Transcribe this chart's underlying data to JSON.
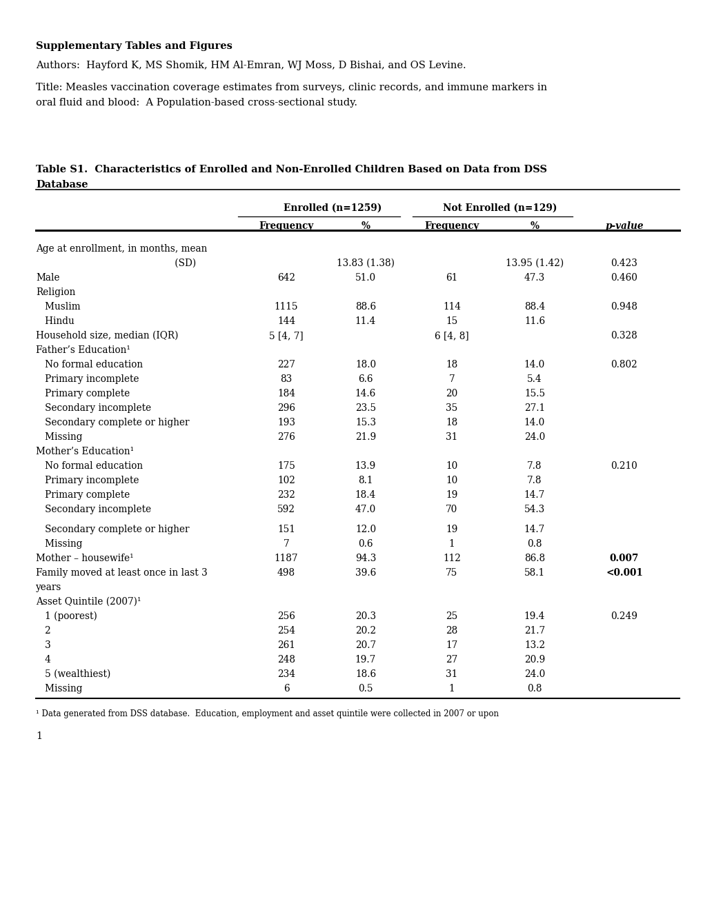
{
  "title_bold": "Supplementary Tables and Figures",
  "authors": "Authors:  Hayford K, MS Shomik, HM Al-Emran, WJ Moss, D Bishai, and OS Levine.",
  "paper_title_line1": "Title: Measles vaccination coverage estimates from surveys, clinic records, and immune markers in",
  "paper_title_line2": "oral fluid and blood:  A Population-based cross-sectional study.",
  "table_title_line1": "Table S1.  Characteristics of Enrolled and Non-Enrolled Children Based on Data from DSS",
  "table_title_line2": "Database",
  "footnote": "¹ Data generated from DSS database.  Education, employment and asset quintile were collected in 2007 or upon",
  "page_number": "1",
  "enrolled_header": "Enrolled (n=1259)",
  "notenrolled_header": "Not Enrolled (n=129)",
  "subheaders": [
    "Frequency",
    "%",
    "Frequency",
    "%",
    "p-value"
  ],
  "rows": [
    {
      "label": "Age at enrollment, in months, mean",
      "indent": 2,
      "freq1": "",
      "pct1": "",
      "freq2": "",
      "pct2": "",
      "pval": "",
      "bold_pval": false,
      "extra_before": 0
    },
    {
      "label": "                                              (SD)",
      "indent": 0,
      "freq1": "",
      "pct1": "13.83 (1.38)",
      "freq2": "",
      "pct2": "13.95 (1.42)",
      "pval": "0.423",
      "bold_pval": false,
      "extra_before": 0
    },
    {
      "label": "Male",
      "indent": 0,
      "freq1": "642",
      "pct1": "51.0",
      "freq2": "61",
      "pct2": "47.3",
      "pval": "0.460",
      "bold_pval": false,
      "extra_before": 0
    },
    {
      "label": "Religion",
      "indent": 0,
      "freq1": "",
      "pct1": "",
      "freq2": "",
      "pct2": "",
      "pval": "",
      "bold_pval": false,
      "extra_before": 0
    },
    {
      "label": "   Muslim",
      "indent": 1,
      "freq1": "1115",
      "pct1": "88.6",
      "freq2": "114",
      "pct2": "88.4",
      "pval": "0.948",
      "bold_pval": false,
      "extra_before": 0
    },
    {
      "label": "   Hindu",
      "indent": 1,
      "freq1": "144",
      "pct1": "11.4",
      "freq2": "15",
      "pct2": "11.6",
      "pval": "",
      "bold_pval": false,
      "extra_before": 0
    },
    {
      "label": "Household size, median (IQR)",
      "indent": 0,
      "freq1": "5 [4, 7]",
      "pct1": "",
      "freq2": "6 [4, 8]",
      "pct2": "",
      "pval": "0.328",
      "bold_pval": false,
      "extra_before": 0
    },
    {
      "label": "Father’s Education¹",
      "indent": 0,
      "freq1": "",
      "pct1": "",
      "freq2": "",
      "pct2": "",
      "pval": "",
      "bold_pval": false,
      "extra_before": 0
    },
    {
      "label": "   No formal education",
      "indent": 1,
      "freq1": "227",
      "pct1": "18.0",
      "freq2": "18",
      "pct2": "14.0",
      "pval": "0.802",
      "bold_pval": false,
      "extra_before": 0
    },
    {
      "label": "   Primary incomplete",
      "indent": 1,
      "freq1": "83",
      "pct1": "6.6",
      "freq2": "7",
      "pct2": "5.4",
      "pval": "",
      "bold_pval": false,
      "extra_before": 0
    },
    {
      "label": "   Primary complete",
      "indent": 1,
      "freq1": "184",
      "pct1": "14.6",
      "freq2": "20",
      "pct2": "15.5",
      "pval": "",
      "bold_pval": false,
      "extra_before": 0
    },
    {
      "label": "   Secondary incomplete",
      "indent": 1,
      "freq1": "296",
      "pct1": "23.5",
      "freq2": "35",
      "pct2": "27.1",
      "pval": "",
      "bold_pval": false,
      "extra_before": 0
    },
    {
      "label": "   Secondary complete or higher",
      "indent": 1,
      "freq1": "193",
      "pct1": "15.3",
      "freq2": "18",
      "pct2": "14.0",
      "pval": "",
      "bold_pval": false,
      "extra_before": 0
    },
    {
      "label": "   Missing",
      "indent": 1,
      "freq1": "276",
      "pct1": "21.9",
      "freq2": "31",
      "pct2": "24.0",
      "pval": "",
      "bold_pval": false,
      "extra_before": 0
    },
    {
      "label": "Mother’s Education¹",
      "indent": 0,
      "freq1": "",
      "pct1": "",
      "freq2": "",
      "pct2": "",
      "pval": "",
      "bold_pval": false,
      "extra_before": 0
    },
    {
      "label": "   No formal education",
      "indent": 1,
      "freq1": "175",
      "pct1": "13.9",
      "freq2": "10",
      "pct2": "7.8",
      "pval": "0.210",
      "bold_pval": false,
      "extra_before": 0
    },
    {
      "label": "   Primary incomplete",
      "indent": 1,
      "freq1": "102",
      "pct1": "8.1",
      "freq2": "10",
      "pct2": "7.8",
      "pval": "",
      "bold_pval": false,
      "extra_before": 0
    },
    {
      "label": "   Primary complete",
      "indent": 1,
      "freq1": "232",
      "pct1": "18.4",
      "freq2": "19",
      "pct2": "14.7",
      "pval": "",
      "bold_pval": false,
      "extra_before": 0
    },
    {
      "label": "   Secondary incomplete",
      "indent": 1,
      "freq1": "592",
      "pct1": "47.0",
      "freq2": "70",
      "pct2": "54.3",
      "pval": "",
      "bold_pval": false,
      "extra_before": 0
    },
    {
      "label": "   Secondary complete or higher",
      "indent": 1,
      "freq1": "151",
      "pct1": "12.0",
      "freq2": "19",
      "pct2": "14.7",
      "pval": "",
      "bold_pval": false,
      "extra_before": 8
    },
    {
      "label": "   Missing",
      "indent": 1,
      "freq1": "7",
      "pct1": "0.6",
      "freq2": "1",
      "pct2": "0.8",
      "pval": "",
      "bold_pval": false,
      "extra_before": 0
    },
    {
      "label": "Mother – housewife¹",
      "indent": 0,
      "freq1": "1187",
      "pct1": "94.3",
      "freq2": "112",
      "pct2": "86.8",
      "pval": "0.007",
      "bold_pval": true,
      "extra_before": 0
    },
    {
      "label": "Family moved at least once in last 3",
      "indent": 0,
      "freq1": "498",
      "pct1": "39.6",
      "freq2": "75",
      "pct2": "58.1",
      "pval": "<0.001",
      "bold_pval": true,
      "extra_before": 0
    },
    {
      "label": "years",
      "indent": 0,
      "freq1": "",
      "pct1": "",
      "freq2": "",
      "pct2": "",
      "pval": "",
      "bold_pval": false,
      "extra_before": 0
    },
    {
      "label": "Asset Quintile (2007)¹",
      "indent": 0,
      "freq1": "",
      "pct1": "",
      "freq2": "",
      "pct2": "",
      "pval": "",
      "bold_pval": false,
      "extra_before": 0
    },
    {
      "label": "   1 (poorest)",
      "indent": 1,
      "freq1": "256",
      "pct1": "20.3",
      "freq2": "25",
      "pct2": "19.4",
      "pval": "0.249",
      "bold_pval": false,
      "extra_before": 0
    },
    {
      "label": "   2",
      "indent": 1,
      "freq1": "254",
      "pct1": "20.2",
      "freq2": "28",
      "pct2": "21.7",
      "pval": "",
      "bold_pval": false,
      "extra_before": 0
    },
    {
      "label": "   3",
      "indent": 1,
      "freq1": "261",
      "pct1": "20.7",
      "freq2": "17",
      "pct2": "13.2",
      "pval": "",
      "bold_pval": false,
      "extra_before": 0
    },
    {
      "label": "   4",
      "indent": 1,
      "freq1": "248",
      "pct1": "19.7",
      "freq2": "27",
      "pct2": "20.9",
      "pval": "",
      "bold_pval": false,
      "extra_before": 0
    },
    {
      "label": "   5 (wealthiest)",
      "indent": 1,
      "freq1": "234",
      "pct1": "18.6",
      "freq2": "31",
      "pct2": "24.0",
      "pval": "",
      "bold_pval": false,
      "extra_before": 0
    },
    {
      "label": "   Missing",
      "indent": 1,
      "freq1": "6",
      "pct1": "0.5",
      "freq2": "1",
      "pct2": "0.8",
      "pval": "",
      "bold_pval": false,
      "extra_before": 0
    }
  ]
}
